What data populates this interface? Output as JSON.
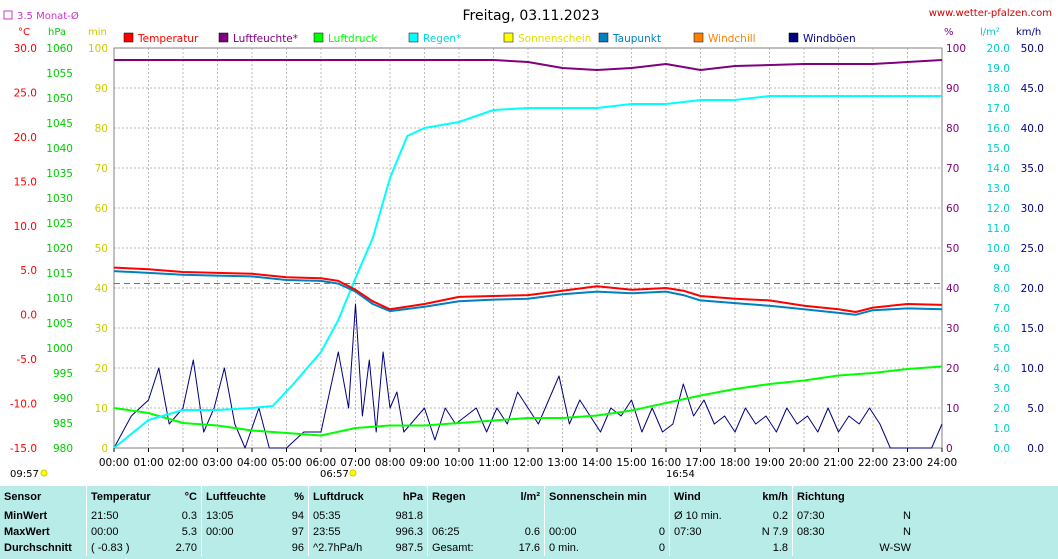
{
  "header": {
    "title": "Freitag, 03.11.2023",
    "website": "www.wetter-pfalzen.com",
    "monthly_avg_label": "3.5 Monat-Ø",
    "sunrise_time": "06:57",
    "sunset_time": "16:54",
    "sunshine_start_time": "09:57"
  },
  "axis_units": {
    "celsius": "°C",
    "hpa": "hPa",
    "minutes": "min",
    "percent": "%",
    "rain": "l/m²",
    "wind": "km/h"
  },
  "colors": {
    "temperature": "#ff0000",
    "humidity": "#800080",
    "pressure": "#00ff00",
    "rain": "#00ffff",
    "sunshine": "#ffff00",
    "dewpoint": "#0080c0",
    "windchill": "#ff8000",
    "gusts": "#000080",
    "monthly_avg": "#cc33cc",
    "summary_bg": "#b8ece8"
  },
  "chart_data": {
    "type": "line",
    "title": "Freitag, 03.11.2023",
    "x_ticks": [
      "00:00",
      "01:00",
      "02:00",
      "03:00",
      "04:00",
      "05:00",
      "06:00",
      "07:00",
      "08:00",
      "09:00",
      "10:00",
      "11:00",
      "12:00",
      "13:00",
      "14:00",
      "15:00",
      "16:00",
      "17:00",
      "18:00",
      "19:00",
      "20:00",
      "21:00",
      "22:00",
      "23:00",
      "24:00"
    ],
    "axes": {
      "temperature": {
        "range": [
          -15,
          30
        ],
        "ticks": [
          "30.0",
          "25.0",
          "20.0",
          "15.0",
          "10.0",
          "5.0",
          "0.0",
          "-5.0",
          "-10.0",
          "-15.0"
        ],
        "unit": "°C"
      },
      "pressure": {
        "range": [
          980,
          1060
        ],
        "ticks": [
          "1060",
          "1055",
          "1050",
          "1045",
          "1040",
          "1035",
          "1030",
          "1025",
          "1020",
          "1015",
          "1010",
          "1005",
          "1000",
          "995",
          "990",
          "985",
          "980"
        ],
        "unit": "hPa"
      },
      "sunshine": {
        "range": [
          0,
          100
        ],
        "ticks": [
          "100",
          "90",
          "80",
          "70",
          "60",
          "50",
          "40",
          "30",
          "20",
          "10",
          "0"
        ],
        "unit": "min"
      },
      "humidity": {
        "range": [
          0,
          100
        ],
        "ticks": [
          "100",
          "90",
          "80",
          "70",
          "60",
          "50",
          "40",
          "30",
          "20",
          "10",
          "0"
        ],
        "unit": "%"
      },
      "rain": {
        "range": [
          0,
          20
        ],
        "ticks": [
          "20.0",
          "19.0",
          "18.0",
          "17.0",
          "16.0",
          "15.0",
          "14.0",
          "13.0",
          "12.0",
          "11.0",
          "10.0",
          "9.0",
          "8.0",
          "7.0",
          "6.0",
          "5.0",
          "4.0",
          "3.0",
          "2.0",
          "1.0",
          "0.0"
        ],
        "unit": "l/m²"
      },
      "wind": {
        "range": [
          0,
          50
        ],
        "ticks": [
          "50.0",
          "45.0",
          "40.0",
          "35.0",
          "30.0",
          "25.0",
          "20.0",
          "15.0",
          "10.0",
          "5.0",
          "0.0"
        ],
        "unit": "km/h"
      }
    },
    "monthly_avg_temperature": 3.5,
    "series": [
      {
        "name": "Temperatur",
        "key": "temperature",
        "axis": "temperature",
        "x": [
          0,
          1,
          2,
          3,
          4,
          5,
          6,
          6.5,
          7,
          7.5,
          8,
          9,
          10,
          11,
          12,
          13,
          14,
          15,
          16,
          16.5,
          17,
          18,
          19,
          20,
          21,
          21.5,
          22,
          23,
          24
        ],
        "y": [
          5.3,
          5.1,
          4.8,
          4.7,
          4.6,
          4.2,
          4.1,
          3.8,
          2.8,
          1.5,
          0.6,
          1.2,
          2.0,
          2.1,
          2.2,
          2.7,
          3.2,
          2.8,
          3.0,
          2.7,
          2.1,
          1.8,
          1.6,
          1.0,
          0.6,
          0.3,
          0.8,
          1.2,
          1.1
        ]
      },
      {
        "name": "Luftfeuchte*",
        "key": "humidity",
        "axis": "humidity",
        "x": [
          0,
          3,
          6,
          9,
          11,
          12,
          13,
          14,
          15,
          16,
          17,
          18,
          20,
          22,
          23,
          24
        ],
        "y": [
          97,
          97,
          97,
          97,
          97,
          96.5,
          95,
          94.5,
          95,
          96,
          94.5,
          95.5,
          96,
          96,
          96.5,
          97
        ]
      },
      {
        "name": "Luftdruck",
        "key": "pressure",
        "axis": "pressure",
        "x": [
          0,
          1,
          2,
          3,
          4,
          5,
          6,
          7,
          8,
          9,
          10,
          11,
          12,
          13,
          14,
          15,
          16,
          17,
          18,
          19,
          20,
          21,
          22,
          23,
          24
        ],
        "y": [
          988,
          987,
          985,
          984.5,
          983.5,
          983,
          982.5,
          984,
          984.5,
          984.5,
          985,
          985.5,
          986,
          986,
          986.5,
          987.5,
          989,
          990.5,
          991.8,
          992.8,
          993.5,
          994.5,
          995,
          995.8,
          996.3
        ]
      },
      {
        "name": "Regen*",
        "key": "rain",
        "axis": "rain",
        "x": [
          0,
          1,
          2,
          3,
          4,
          4.6,
          5.2,
          6,
          6.5,
          7,
          7.5,
          8,
          8.5,
          9,
          10,
          11,
          12,
          13,
          14,
          15,
          16,
          17,
          18,
          19,
          20,
          21,
          22,
          23,
          24
        ],
        "y": [
          0,
          1.4,
          1.9,
          1.9,
          2.0,
          2.1,
          3.2,
          4.8,
          6.4,
          8.5,
          10.5,
          13.5,
          15.6,
          16.0,
          16.3,
          16.9,
          17.0,
          17.0,
          17.0,
          17.2,
          17.2,
          17.4,
          17.4,
          17.6,
          17.6,
          17.6,
          17.6,
          17.6,
          17.6
        ]
      },
      {
        "name": "Sonnenschein",
        "key": "sunshine",
        "axis": "sunshine",
        "x": [],
        "y": []
      },
      {
        "name": "Taupunkt",
        "key": "dewpoint",
        "axis": "temperature",
        "x": [
          0,
          1,
          2,
          3,
          4,
          5,
          6,
          6.5,
          7,
          7.5,
          8,
          9,
          10,
          11,
          12,
          13,
          14,
          15,
          16,
          16.5,
          17,
          18,
          19,
          20,
          21,
          21.5,
          22,
          23,
          24
        ],
        "y": [
          4.9,
          4.7,
          4.5,
          4.4,
          4.3,
          3.9,
          3.8,
          3.5,
          2.6,
          1.2,
          0.4,
          0.9,
          1.5,
          1.7,
          1.8,
          2.3,
          2.6,
          2.4,
          2.6,
          2.2,
          1.6,
          1.3,
          1.0,
          0.6,
          0.2,
          0.0,
          0.5,
          0.7,
          0.6
        ]
      },
      {
        "name": "Windchill",
        "key": "windchill",
        "axis": "temperature",
        "x": [],
        "y": []
      },
      {
        "name": "Windböen",
        "key": "gusts",
        "axis": "wind",
        "x": [
          0,
          0.5,
          1,
          1.3,
          1.6,
          2,
          2.3,
          2.6,
          2.9,
          3.2,
          3.5,
          3.8,
          4.2,
          4.5,
          5,
          5.5,
          6,
          6.2,
          6.5,
          6.8,
          7,
          7.2,
          7.4,
          7.6,
          7.8,
          8,
          8.2,
          8.4,
          8.6,
          8.8,
          9,
          9.3,
          9.6,
          9.9,
          10.2,
          10.5,
          10.8,
          11.1,
          11.4,
          11.7,
          12,
          12.3,
          12.6,
          12.9,
          13.2,
          13.5,
          13.8,
          14.1,
          14.4,
          14.7,
          15,
          15.3,
          15.6,
          15.9,
          16.2,
          16.5,
          16.8,
          17.1,
          17.4,
          17.7,
          18,
          18.3,
          18.6,
          18.9,
          19.2,
          19.5,
          19.8,
          20.1,
          20.4,
          20.7,
          21,
          21.3,
          21.6,
          21.9,
          22.2,
          22.5,
          22.8,
          23.1,
          23.4,
          23.7,
          24
        ],
        "y": [
          0,
          4,
          6,
          10,
          3,
          5,
          11,
          2,
          5,
          10,
          3,
          0,
          5,
          0,
          0,
          2,
          2,
          6,
          12,
          5,
          18,
          4,
          11,
          2,
          12,
          5,
          7,
          2,
          3,
          4,
          5,
          1,
          5,
          3,
          4,
          5,
          2,
          5,
          3,
          7,
          5,
          3,
          6,
          9,
          3,
          6,
          4,
          2,
          5,
          4,
          6,
          2,
          5,
          2,
          3,
          8,
          4,
          6,
          3,
          4,
          2,
          5,
          3,
          4,
          2,
          5,
          3,
          4,
          2,
          5,
          2,
          4,
          3,
          5,
          3,
          0,
          0,
          0,
          0,
          0,
          3
        ]
      }
    ],
    "legend_placement": "top",
    "grid": true
  },
  "summary": {
    "headers": {
      "sensor": "Sensor",
      "temperature": "Temperatur",
      "temperature_unit": "°C",
      "humidity": "Luftfeuchte",
      "humidity_unit": "%",
      "pressure": "Luftdruck",
      "pressure_unit": "hPa",
      "rain": "Regen",
      "rain_unit": "l/m²",
      "sunshine": "Sonnenschein min",
      "wind": "Wind",
      "wind_unit": "km/h",
      "direction": "Richtung"
    },
    "rows": [
      {
        "label": "MinWert",
        "temp_time": "21:50",
        "temp_val": "0.3",
        "hum_time": "13:05",
        "hum_val": "94",
        "press_time": "05:35",
        "press_val": "981.8",
        "rain_time": "",
        "rain_val": "",
        "sun_time": "",
        "sun_val": "",
        "wind_time": "Ø 10 min.",
        "wind_val": "0.2",
        "dir_time": "07:30",
        "dir_val": "N"
      },
      {
        "label": "MaxWert",
        "temp_time": "00:00",
        "temp_val": "5.3",
        "hum_time": "00:00",
        "hum_val": "97",
        "press_time": "23:55",
        "press_val": "996.3",
        "rain_time": "06:25",
        "rain_val": "0.6",
        "sun_time": "00:00",
        "sun_val": "0",
        "wind_time": "07:30",
        "wind_val": "N 7.9",
        "dir_time": "08:30",
        "dir_val": "N"
      },
      {
        "label": "Durchschnitt",
        "temp_time": "( -0.83 )",
        "temp_val": "2.70",
        "hum_time": "",
        "hum_val": "96",
        "press_time": "^2.7hPa/h",
        "press_val": "987.5",
        "rain_time": "Gesamt:",
        "rain_val": "17.6",
        "sun_time": "0 min.",
        "sun_val": "0",
        "wind_time": "",
        "wind_val": "1.8",
        "dir_time": "",
        "dir_val": "W-SW"
      }
    ]
  }
}
